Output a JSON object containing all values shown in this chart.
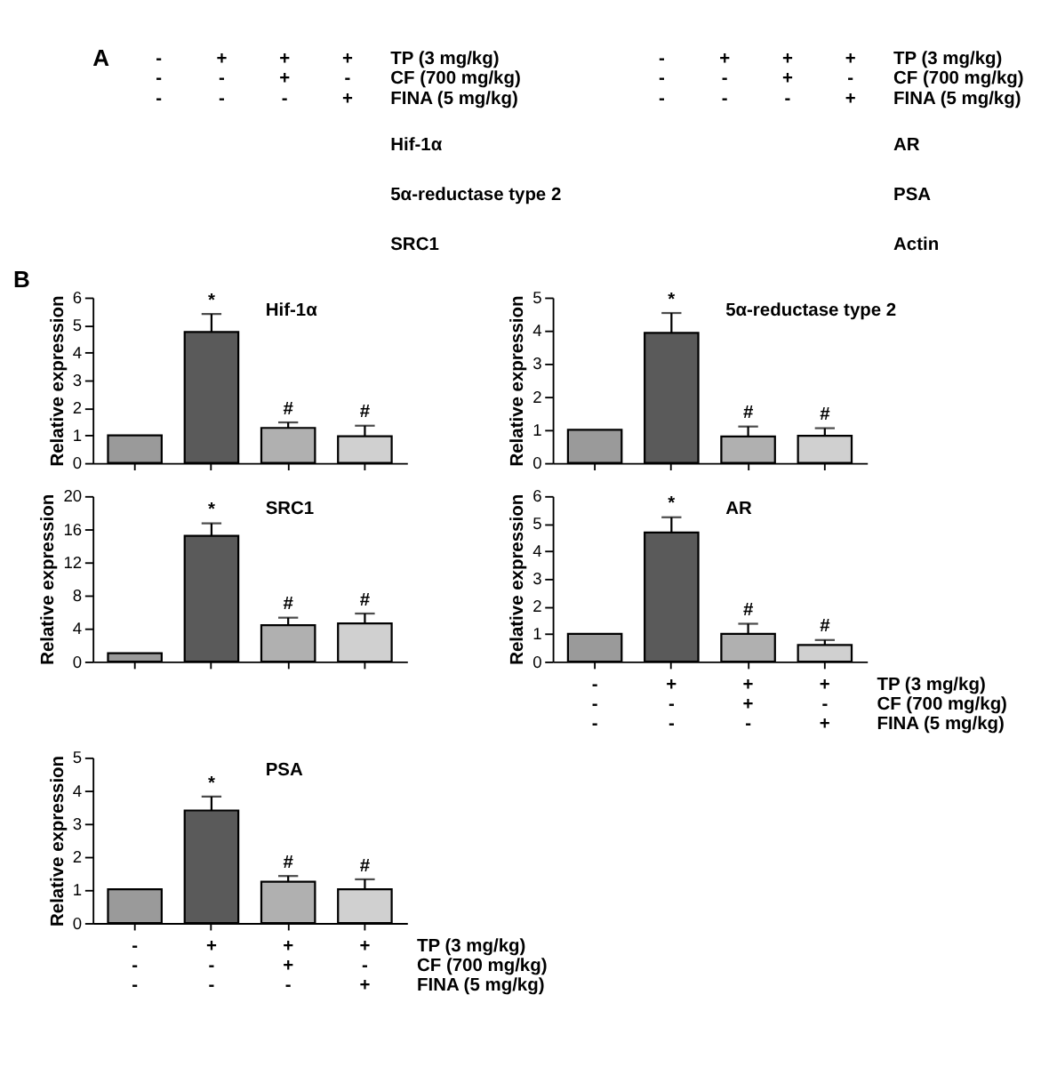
{
  "chart_data": [
    {
      "type": "other",
      "title": "A",
      "categories": [
        "-\n-\n-",
        "+\n-\n-",
        "+\n+\n-",
        "+\n-\n+"
      ],
      "annotations": [
        "TP (3 mg/kg)",
        "CF (700 mg/kg)",
        "FINA (5 mg/kg)",
        "Hif-1α",
        "5α-reductase type 2",
        "SRC1"
      ]
    },
    {
      "type": "other",
      "categories": [
        "-\n-\n-",
        "+\n-\n-",
        "+\n+\n-",
        "+\n-\n+"
      ],
      "annotations": [
        "TP (3 mg/kg)",
        "CF (700 mg/kg)",
        "FINA (5 mg/kg)",
        "AR",
        "PSA",
        "Actin"
      ]
    },
    {
      "type": "bar",
      "title": "Hif-1α",
      "ylabel": "Relative expression",
      "annotations": [
        "B"
      ],
      "tick_labels": "y",
      "categories": [
        null,
        null,
        null,
        null
      ],
      "values": [
        1.0,
        4.75,
        1.27,
        0.97
      ],
      "errors": [
        null,
        [
          4.75,
          5.4
        ],
        [
          1.27,
          1.47
        ],
        [
          0.97,
          1.35
        ]
      ],
      "value_labels": [
        null,
        "*",
        "#",
        "#"
      ],
      "colors": [
        "#9a9a9a",
        "#5a5a5a",
        "#b0b0b0",
        "#d0d0d0"
      ],
      "ylim": [
        0,
        6
      ],
      "yticks": [
        0,
        1,
        2,
        3,
        4,
        5,
        6
      ],
      "grid": false
    },
    {
      "type": "bar",
      "title": "5α-reductase type 2",
      "ylabel": "Relative expression",
      "tick_labels": "y",
      "categories": [
        null,
        null,
        null,
        null
      ],
      "values": [
        1.0,
        3.93,
        0.8,
        0.82
      ],
      "errors": [
        null,
        [
          3.93,
          4.53
        ],
        [
          0.8,
          1.1
        ],
        [
          0.82,
          1.05
        ]
      ],
      "value_labels": [
        null,
        "*",
        "#",
        "#"
      ],
      "colors": [
        "#9a9a9a",
        "#5a5a5a",
        "#b0b0b0",
        "#d0d0d0"
      ],
      "ylim": [
        0,
        5
      ],
      "yticks": [
        0,
        1,
        2,
        3,
        4,
        5
      ],
      "grid": false
    },
    {
      "type": "bar",
      "title": "SRC1",
      "ylabel": "Relative expression",
      "tick_labels": "y",
      "categories": [
        null,
        null,
        null,
        null
      ],
      "values": [
        1.0,
        15.2,
        4.4,
        4.6
      ],
      "errors": [
        null,
        [
          15.2,
          16.7
        ],
        [
          4.4,
          5.3
        ],
        [
          4.6,
          5.8
        ]
      ],
      "value_labels": [
        null,
        "*",
        "#",
        "#"
      ],
      "colors": [
        "#9a9a9a",
        "#5a5a5a",
        "#b0b0b0",
        "#d0d0d0"
      ],
      "ylim": [
        0,
        20
      ],
      "yticks": [
        0,
        4,
        8,
        12,
        16,
        20
      ],
      "grid": false
    },
    {
      "type": "bar",
      "title": "AR",
      "ylabel": "Relative expression",
      "annotations": [
        "TP (3 mg/kg)",
        "CF (700 mg/kg)",
        "FINA (5 mg/kg)"
      ],
      "categories": [
        "-\n-\n-",
        "+\n-\n-",
        "+\n+\n-",
        "+\n-\n+"
      ],
      "values": [
        1.0,
        4.68,
        1.0,
        0.6
      ],
      "errors": [
        null,
        [
          4.68,
          5.23
        ],
        [
          1.0,
          1.37
        ],
        [
          0.6,
          0.78
        ]
      ],
      "value_labels": [
        null,
        "*",
        "#",
        "#"
      ],
      "colors": [
        "#9a9a9a",
        "#5a5a5a",
        "#b0b0b0",
        "#d0d0d0"
      ],
      "ylim": [
        0,
        6
      ],
      "yticks": [
        0,
        1,
        2,
        3,
        4,
        5,
        6
      ],
      "grid": false
    },
    {
      "type": "bar",
      "title": "PSA",
      "ylabel": "Relative expression",
      "annotations": [
        "TP (3 mg/kg)",
        "CF (700 mg/kg)",
        "FINA (5 mg/kg)"
      ],
      "categories": [
        "-\n-\n-",
        "+\n-\n-",
        "+\n+\n-",
        "+\n-\n+"
      ],
      "values": [
        1.02,
        3.4,
        1.25,
        1.02
      ],
      "errors": [
        null,
        [
          3.4,
          3.82
        ],
        [
          1.25,
          1.42
        ],
        [
          1.02,
          1.32
        ]
      ],
      "value_labels": [
        null,
        "*",
        "#",
        "#"
      ],
      "colors": [
        "#9a9a9a",
        "#5a5a5a",
        "#b0b0b0",
        "#d0d0d0"
      ],
      "ylim": [
        0,
        5
      ],
      "yticks": [
        0,
        1,
        2,
        3,
        4,
        5
      ],
      "grid": false
    }
  ]
}
